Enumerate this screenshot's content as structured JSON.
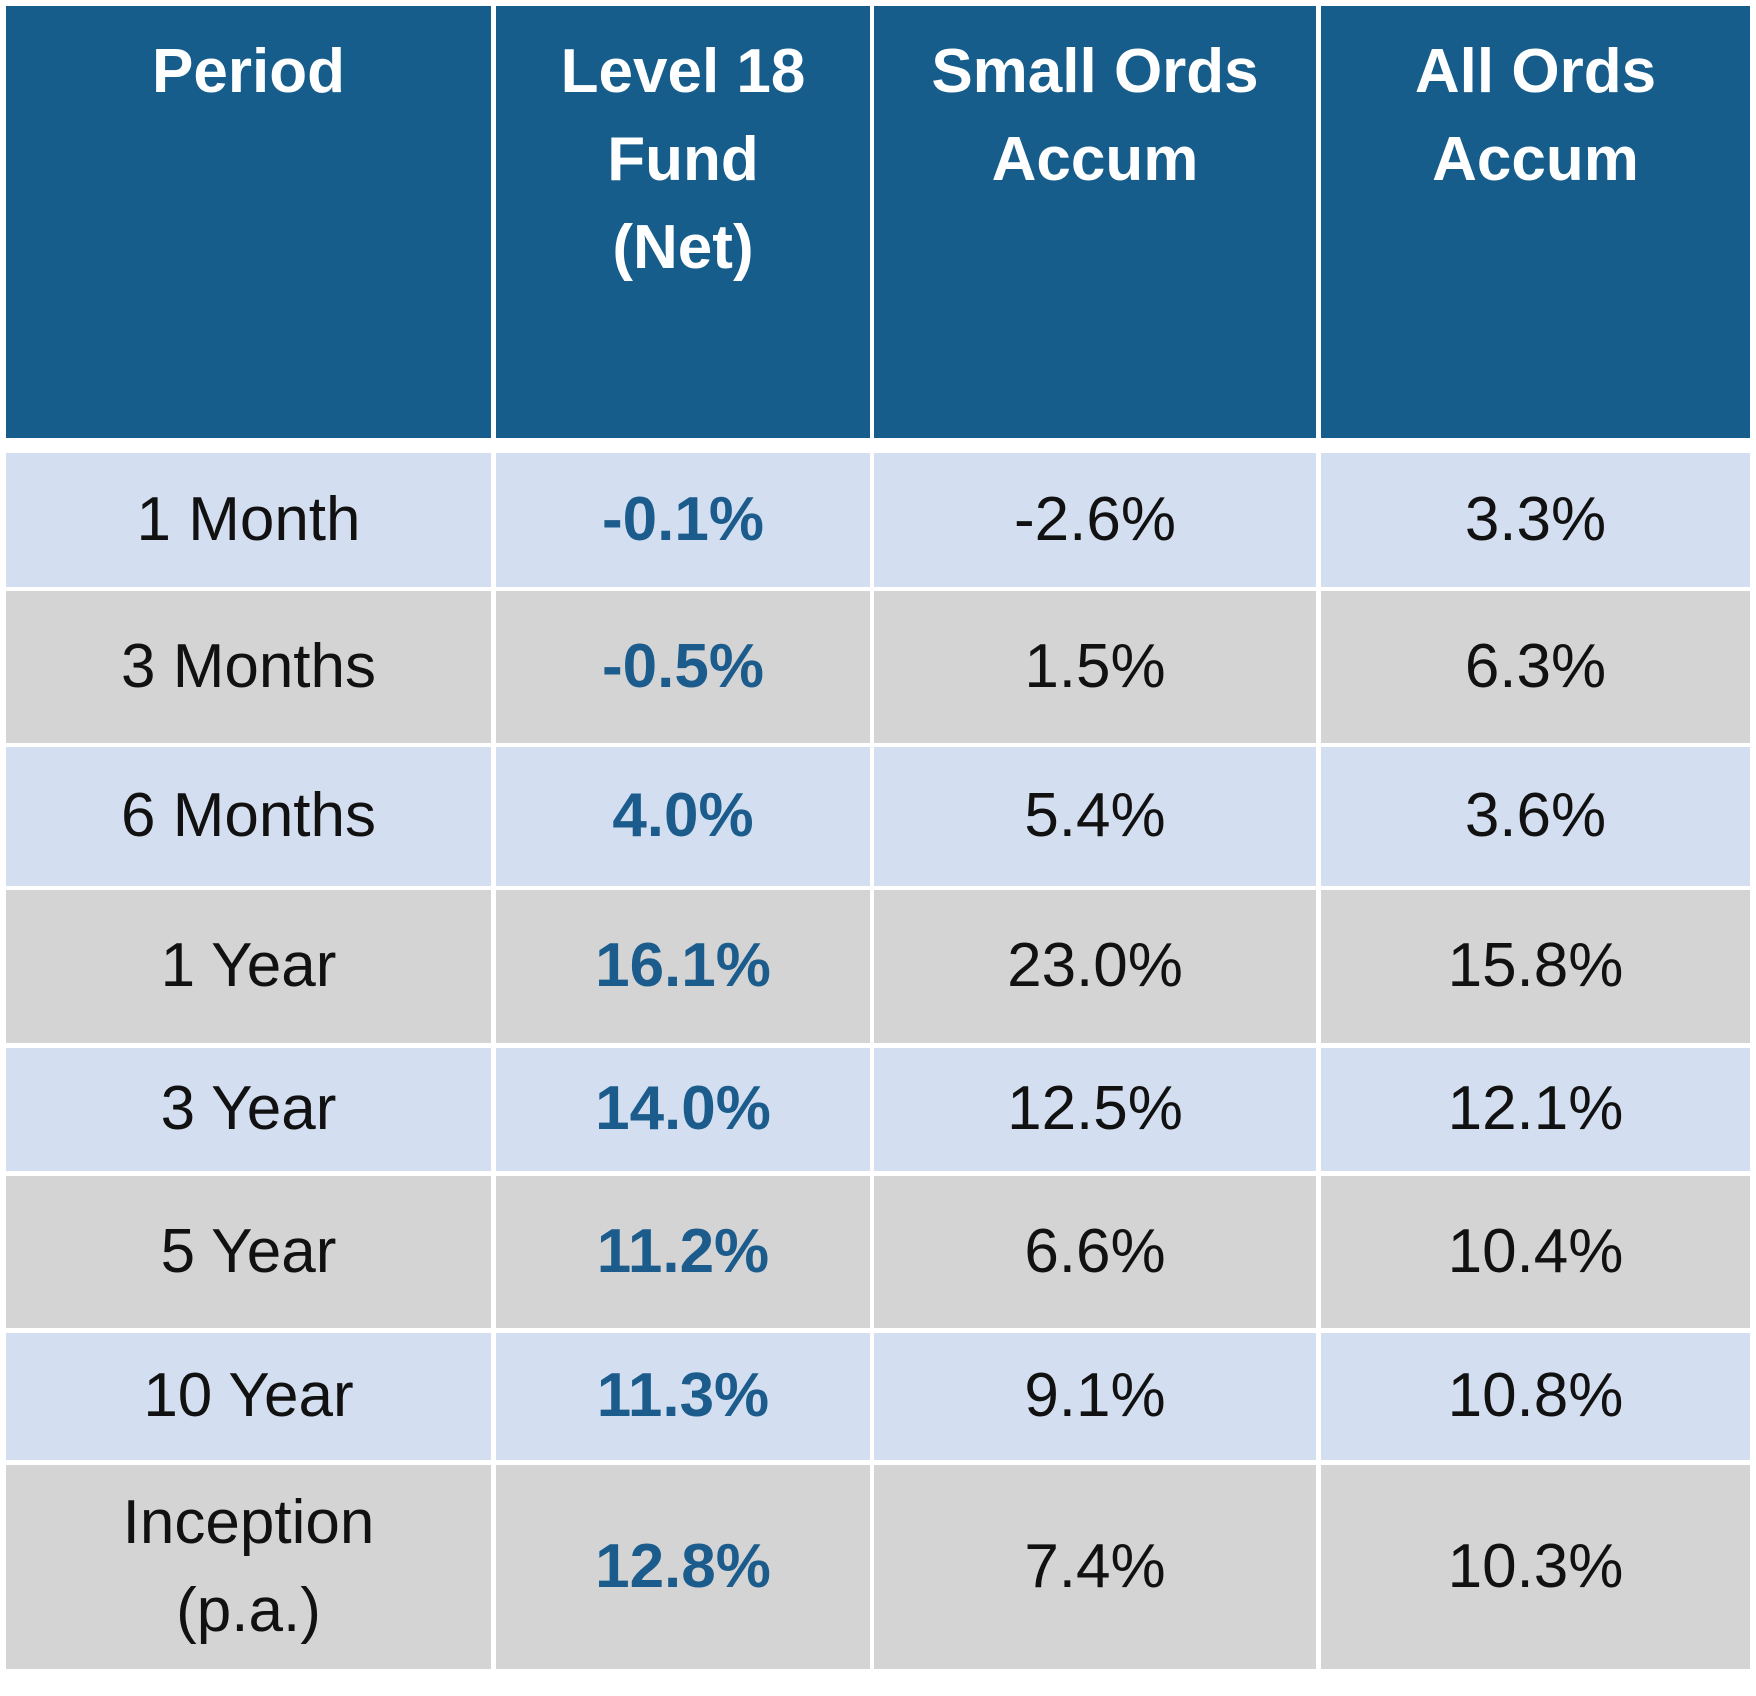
{
  "table": {
    "header": [
      "Period",
      "Level 18 Fund (Net)",
      "Small Ords Accum",
      "All Ords Accum"
    ],
    "rows": [
      [
        "1 Month",
        "-0.1%",
        "-2.6%",
        "3.3%"
      ],
      [
        "3 Months",
        "-0.5%",
        "1.5%",
        "6.3%"
      ],
      [
        "6 Months",
        "4.0%",
        "5.4%",
        "3.6%"
      ],
      [
        "1 Year",
        "16.1%",
        "23.0%",
        "15.8%"
      ],
      [
        "3 Year",
        "14.0%",
        "12.5%",
        "12.1%"
      ],
      [
        "5 Year",
        "11.2%",
        "6.6%",
        "10.4%"
      ],
      [
        "10 Year",
        "11.3%",
        "9.1%",
        "10.8%"
      ],
      [
        "Inception (p.a.)",
        "12.8%",
        "7.4%",
        "10.3%"
      ]
    ]
  }
}
